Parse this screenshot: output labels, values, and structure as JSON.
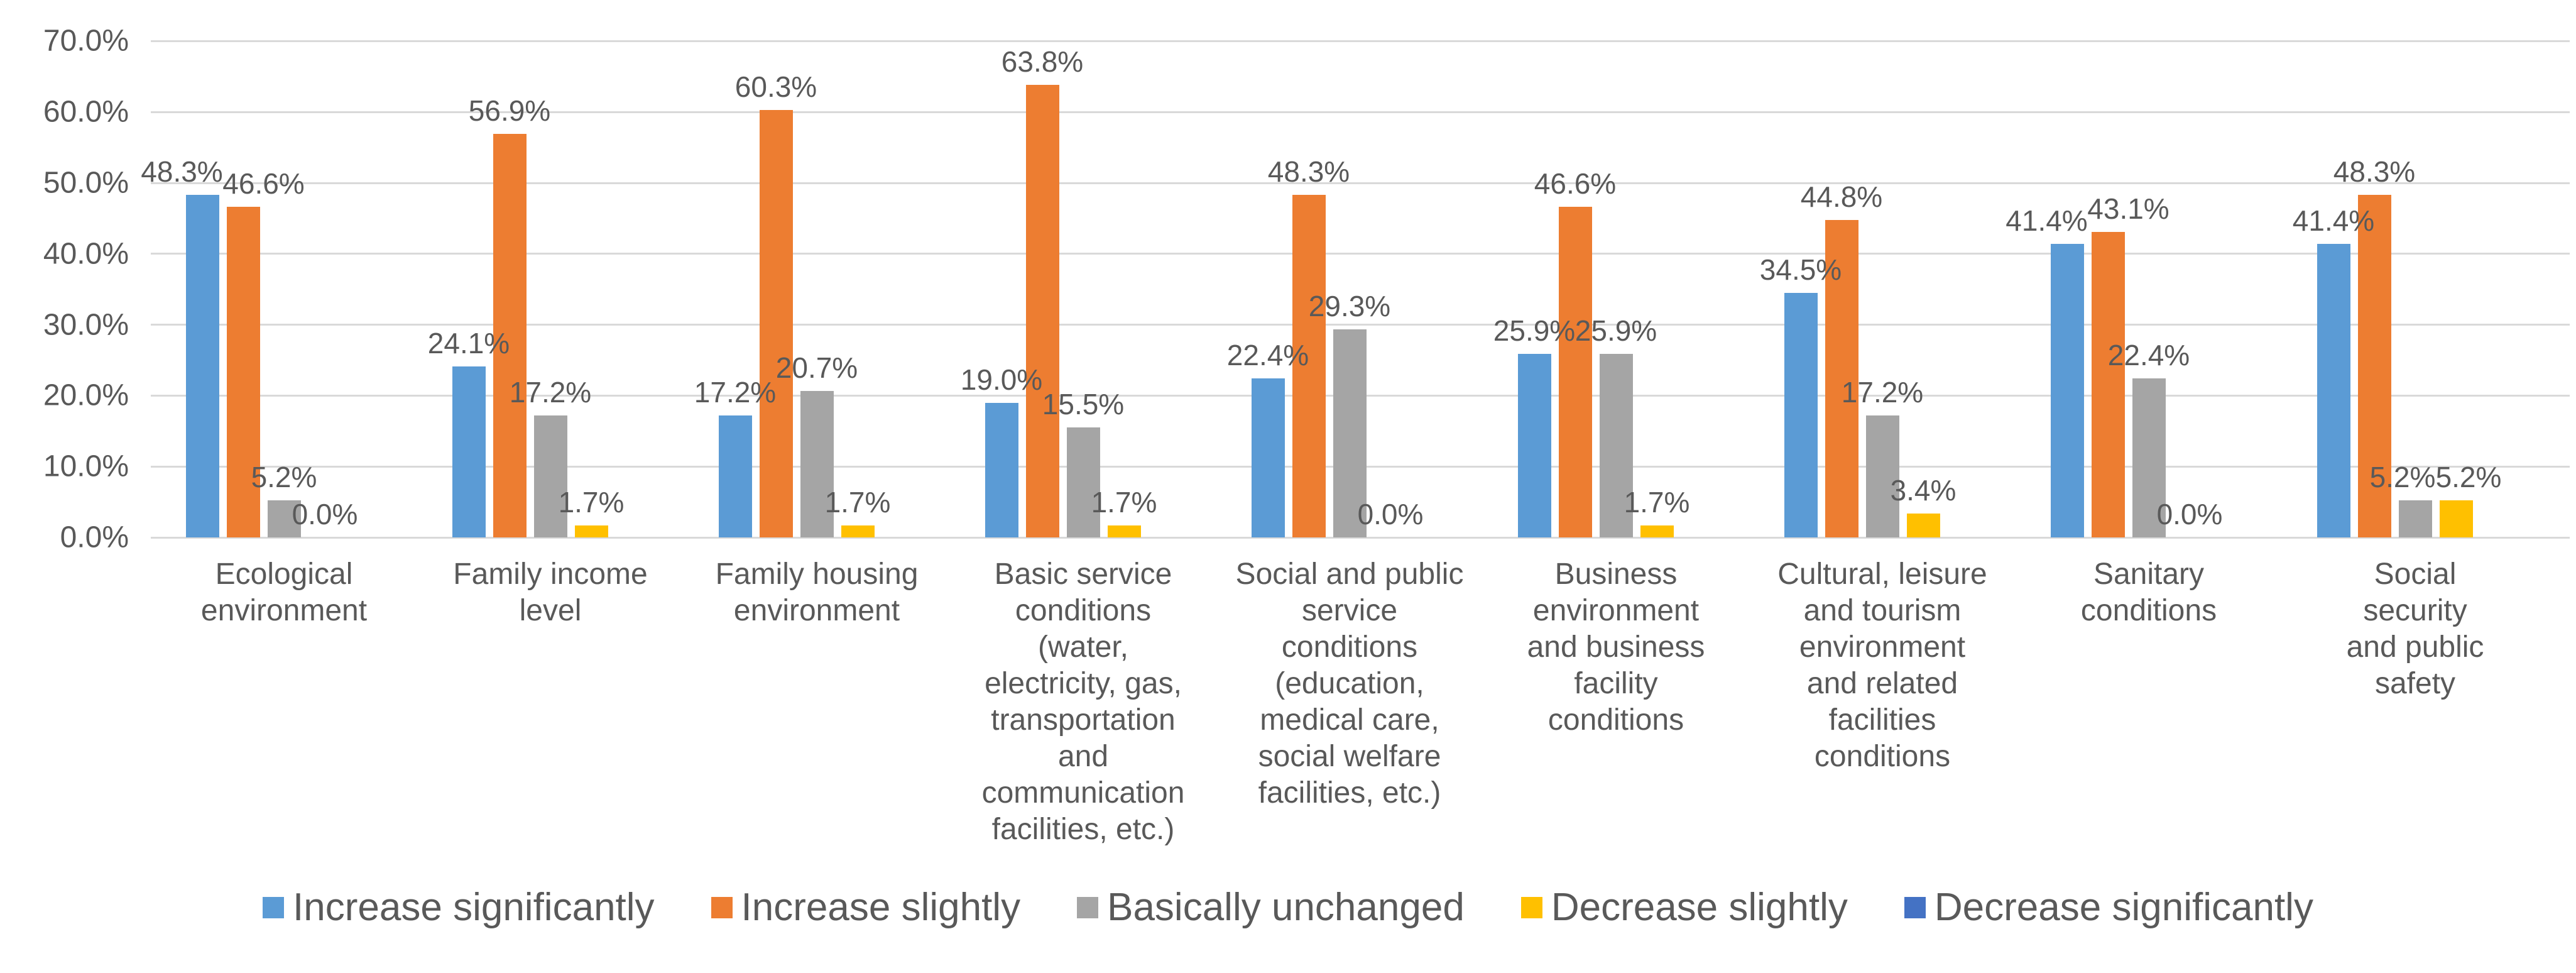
{
  "chart_data": {
    "type": "bar",
    "title": "",
    "categories": [
      "Ecological\nenvironment",
      "Family income\nlevel",
      "Family housing\nenvironment",
      "Basic service\nconditions\n(water,\nelectricity, gas,\ntransportation\nand\ncommunication\nfacilities, etc.)",
      "Social and public\nservice\nconditions\n(education,\nmedical care,\nsocial welfare\nfacilities, etc.)",
      "Business\nenvironment\nand business\nfacility\nconditions",
      "Cultural, leisure\nand tourism\nenvironment\nand related\nfacilities\nconditions",
      "Sanitary\nconditions",
      "Social security\nand public\nsafety"
    ],
    "series": [
      {
        "name": "Increase significantly",
        "color": "#5B9BD5",
        "data_labels": true,
        "values": [
          48.3,
          24.1,
          17.2,
          19.0,
          22.4,
          25.9,
          34.5,
          41.4,
          41.4
        ]
      },
      {
        "name": "Increase slightly",
        "color": "#ED7D31",
        "data_labels": true,
        "values": [
          46.6,
          56.9,
          60.3,
          63.8,
          48.3,
          46.6,
          44.8,
          43.1,
          48.3
        ]
      },
      {
        "name": "Basically unchanged",
        "color": "#A5A5A5",
        "data_labels": true,
        "values": [
          5.2,
          17.2,
          20.7,
          15.5,
          29.3,
          25.9,
          17.2,
          22.4,
          5.2
        ]
      },
      {
        "name": "Decrease slightly",
        "color": "#FFC000",
        "data_labels": true,
        "values": [
          0.0,
          1.7,
          1.7,
          1.7,
          0.0,
          1.7,
          3.4,
          0.0,
          5.2
        ]
      },
      {
        "name": "Decrease significantly",
        "color": "#4472C4",
        "data_labels": false,
        "values": [
          0,
          0,
          0,
          0,
          0,
          0,
          0,
          0,
          0
        ]
      }
    ],
    "ylim": [
      0,
      70
    ],
    "ytick_step": 10,
    "yticks": [
      "0.0%",
      "10.0%",
      "20.0%",
      "30.0%",
      "40.0%",
      "50.0%",
      "60.0%",
      "70.0%"
    ],
    "value_suffix": "%",
    "value_decimals": 1,
    "grid": true,
    "legend_position": "bottom",
    "colors": {
      "text": "#595959",
      "gridline": "#d9d9d9",
      "background": "#ffffff"
    }
  }
}
